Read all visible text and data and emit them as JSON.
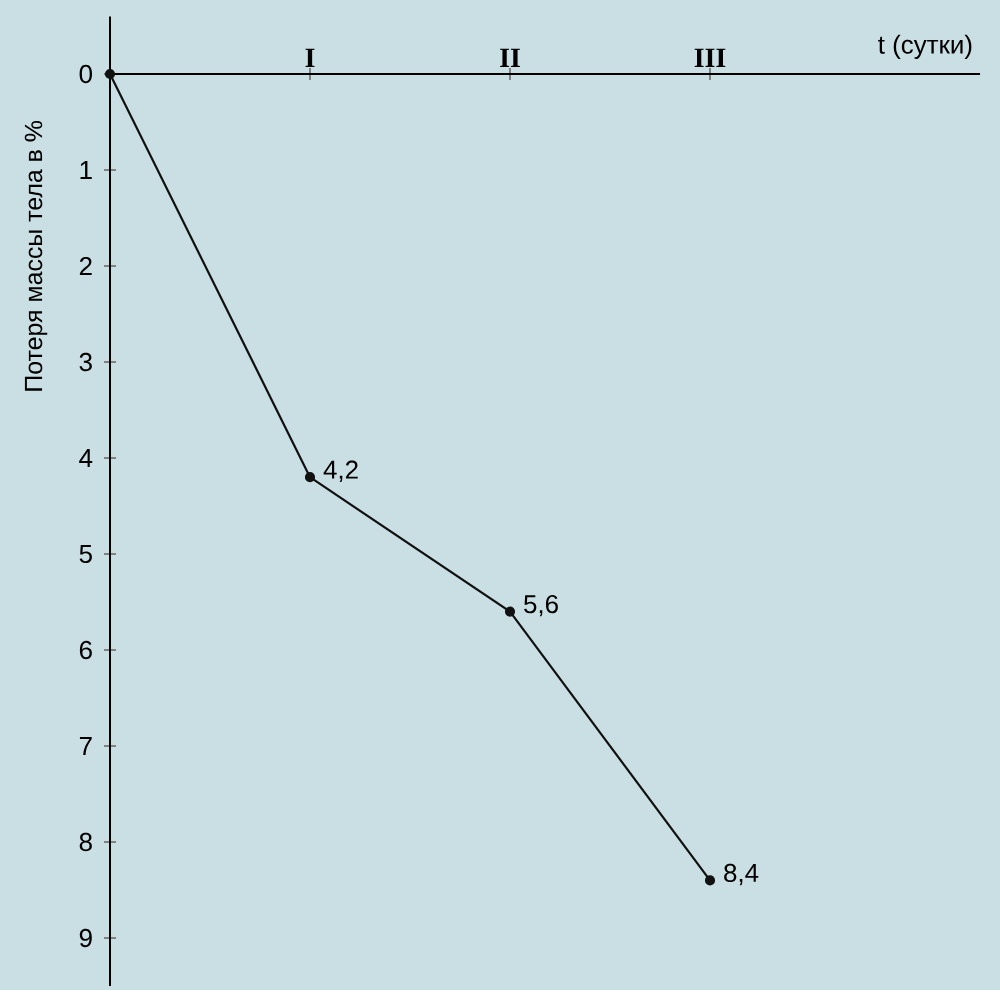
{
  "chart_data": {
    "type": "line",
    "xlabel": "t (сутки)",
    "ylabel": "Потеря массы тела в %",
    "categories": [
      null,
      "I",
      "II",
      "III"
    ],
    "series": [
      {
        "color": "#111111",
        "values": [
          0,
          4.2,
          5.6,
          8.4
        ],
        "value_labels": [
          null,
          "4,2",
          "5,6",
          "8,4"
        ]
      }
    ],
    "ylim": [
      9.5,
      -0.6
    ],
    "yticks": [
      0,
      1,
      2,
      3,
      4,
      5,
      6,
      7,
      8,
      9
    ],
    "marker": "circle"
  }
}
